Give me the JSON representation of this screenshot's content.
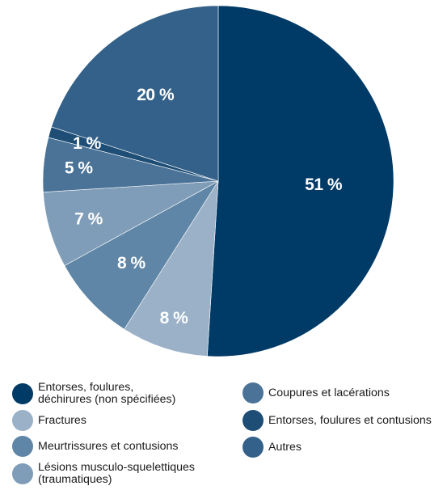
{
  "chart_data": {
    "type": "pie",
    "slices": [
      {
        "label": "Entorses, foulures, déchirures (non spécifiées)",
        "value": 51,
        "display": "51 %",
        "color": "#003a66"
      },
      {
        "label": "Fractures",
        "value": 8,
        "display": "8 %",
        "color": "#9bb1c7"
      },
      {
        "label": "Meurtrissures et contusions",
        "value": 8,
        "display": "8 %",
        "color": "#5f86a6"
      },
      {
        "label": "Lésions musculo-squelettiques\n(traumatiques)",
        "value": 7,
        "display": "7 %",
        "color": "#7f9db8"
      },
      {
        "label": "Coupures et lacérations",
        "value": 5,
        "display": "5 %",
        "color": "#4a7397"
      },
      {
        "label": "Entorses, foulures et contusions",
        "value": 1,
        "display": "1 %",
        "color": "#1e4d75"
      },
      {
        "label": "Autres",
        "value": 20,
        "display": "20 %",
        "color": "#346189"
      }
    ],
    "legend_placement": "bottom"
  },
  "legend": [
    {
      "label": "Entorses, foulures,\ndéchirures (non spécifiées)",
      "color": "#003a66"
    },
    {
      "label": "Fractures",
      "color": "#9bb1c7"
    },
    {
      "label": "Meurtrissures et contusions",
      "color": "#5f86a6"
    },
    {
      "label": "Lésions musculo-squelettiques\n(traumatiques)",
      "color": "#7f9db8"
    },
    {
      "label": "Coupures et lacérations",
      "color": "#4a7397"
    },
    {
      "label": "Entorses, foulures et contusions",
      "color": "#1e4d75"
    },
    {
      "label": "Autres",
      "color": "#346189"
    }
  ]
}
